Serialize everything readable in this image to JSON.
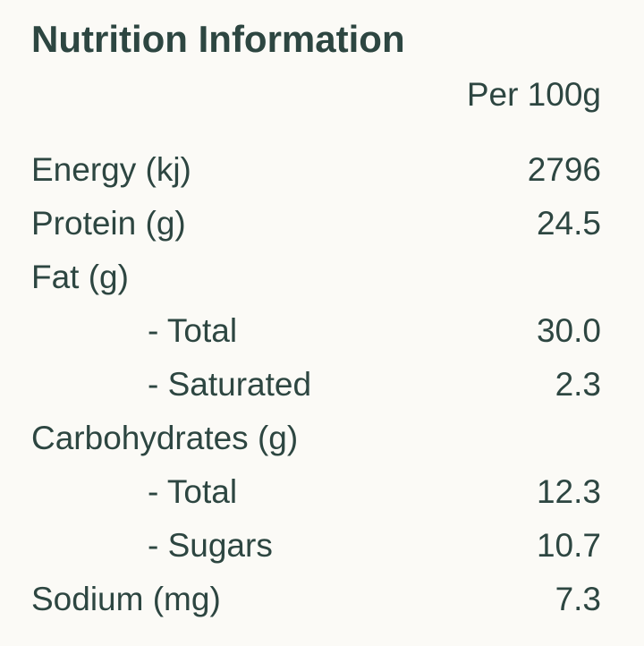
{
  "header": {
    "title": "Nutrition Information",
    "column": "Per 100g"
  },
  "rows": [
    {
      "label": "Energy (kj)",
      "value": "2796"
    },
    {
      "label": "Protein (g)",
      "value": "24.5"
    },
    {
      "label": "Fat (g)",
      "items": [
        {
          "label": "- Total",
          "value": "30.0"
        },
        {
          "label": "- Saturated",
          "value": "2.3"
        }
      ]
    },
    {
      "label": "Carbohydrates (g)",
      "items": [
        {
          "label": "- Total",
          "value": "12.3"
        },
        {
          "label": "- Sugars",
          "value": "10.7"
        }
      ]
    },
    {
      "label": "Sodium (mg)",
      "value": "7.3"
    }
  ]
}
